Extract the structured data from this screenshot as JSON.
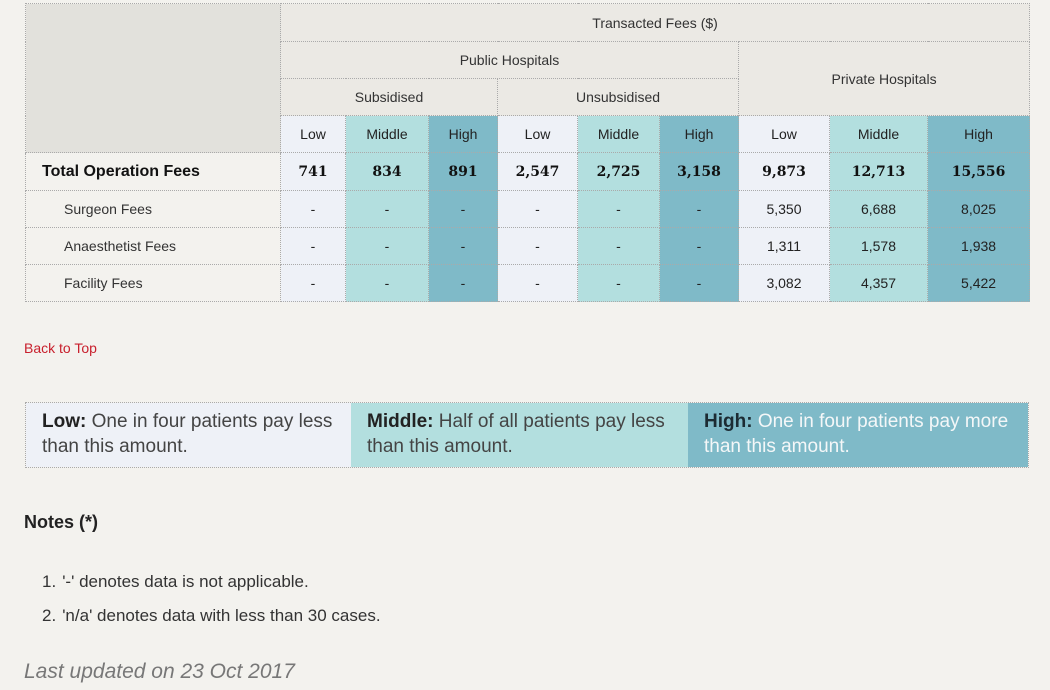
{
  "table": {
    "header": {
      "top": "Transacted Fees ($)",
      "public": "Public Hospitals",
      "private": "Private Hospitals",
      "subsidised": "Subsidised",
      "unsubsidised": "Unsubsidised",
      "levels": [
        "Low",
        "Middle",
        "High",
        "Low",
        "Middle",
        "High",
        "Low",
        "Middle",
        "High"
      ]
    },
    "rows": [
      {
        "label": "Total Operation Fees",
        "values": [
          "741",
          "834",
          "891",
          "2,547",
          "2,725",
          "3,158",
          "9,873",
          "12,713",
          "15,556"
        ]
      },
      {
        "label": "Surgeon Fees",
        "values": [
          "-",
          "-",
          "-",
          "-",
          "-",
          "-",
          "5,350",
          "6,688",
          "8,025"
        ]
      },
      {
        "label": "Anaesthetist Fees",
        "values": [
          "-",
          "-",
          "-",
          "-",
          "-",
          "-",
          "1,311",
          "1,578",
          "1,938"
        ]
      },
      {
        "label": "Facility Fees",
        "values": [
          "-",
          "-",
          "-",
          "-",
          "-",
          "-",
          "3,082",
          "4,357",
          "5,422"
        ]
      }
    ]
  },
  "back_to_top": "Back to Top",
  "legend": {
    "low": {
      "term": "Low:",
      "desc": "One in four patients pay less than this amount."
    },
    "middle": {
      "term": "Middle:",
      "desc": "Half of all patients pay less than this amount."
    },
    "high": {
      "term": "High:",
      "desc": "One in four patients pay more than this amount."
    }
  },
  "notes": {
    "title": "Notes (*)",
    "items": [
      {
        "num": "1.",
        "text": "'-' denotes data is not applicable."
      },
      {
        "num": "2.",
        "text": "'n/a' denotes data with less than 30 cases."
      }
    ]
  },
  "last_updated": "Last updated on 23 Oct 2017",
  "colors": {
    "low": "#eef1f7",
    "middle": "#b3dfdf",
    "high": "#7fbac8",
    "link": "#c8202d"
  }
}
